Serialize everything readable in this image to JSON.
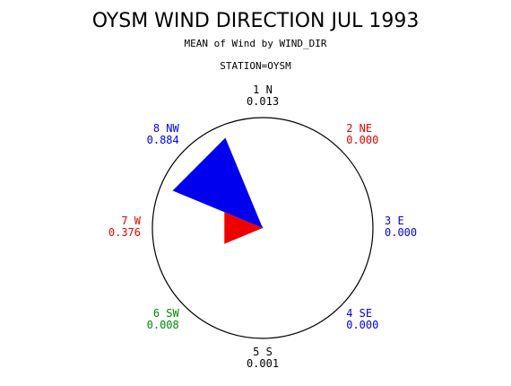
{
  "title": "OYSM WIND DIRECTION JUL 1993",
  "subtitle": "MEAN of Wind by WIND_DIR",
  "station_label": "STATION=OYSM",
  "colors": {
    "blue": "#0000ee",
    "red": "#ee0000",
    "green": "#008800",
    "black": "#000000"
  },
  "chart_data": {
    "type": "wind-rose",
    "directions": [
      {
        "name": "1 N",
        "value": 0.013,
        "value_label": "0.013",
        "color": "#000000"
      },
      {
        "name": "2 NE",
        "value": 0.0,
        "value_label": "0.000",
        "color": "#ee0000"
      },
      {
        "name": "3 E",
        "value": 0.0,
        "value_label": "0.000",
        "color": "#0000ee"
      },
      {
        "name": "4 SE",
        "value": 0.0,
        "value_label": "0.000",
        "color": "#0000ee"
      },
      {
        "name": "5 S",
        "value": 0.001,
        "value_label": "0.001",
        "color": "#000000"
      },
      {
        "name": "6 SW",
        "value": 0.008,
        "value_label": "0.008",
        "color": "#008800"
      },
      {
        "name": "7 W",
        "value": 0.376,
        "value_label": "0.376",
        "color": "#ee0000"
      },
      {
        "name": "8 NW",
        "value": 0.884,
        "value_label": "0.884",
        "color": "#0000ee"
      }
    ],
    "rmax": 1.0
  }
}
